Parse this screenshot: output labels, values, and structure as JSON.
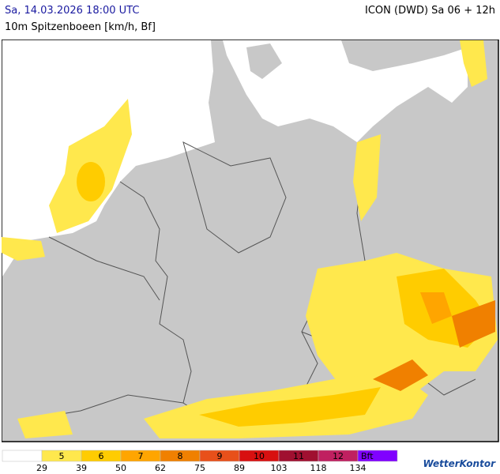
{
  "header": {
    "left": "Sa, 14.03.2026 18:00 UTC",
    "right": "ICON (DWD) Sa 06 + 12h",
    "subtitle": "10m Spitzenboeen [km/h, Bf]"
  },
  "legend": {
    "classes": [
      {
        "color": "#ffffff"
      },
      {
        "label": "5",
        "color": "#ffe84d"
      },
      {
        "label": "6",
        "color": "#ffcc00"
      },
      {
        "label": "7",
        "color": "#ffa500"
      },
      {
        "label": "8",
        "color": "#f08000"
      },
      {
        "label": "9",
        "color": "#e8501a"
      },
      {
        "label": "10",
        "color": "#d81010"
      },
      {
        "label": "11",
        "color": "#a01030"
      },
      {
        "label": "12",
        "color": "#c02060"
      },
      {
        "label": "Bft",
        "color": "#8000ff"
      }
    ],
    "kmh": [
      "29",
      "39",
      "50",
      "62",
      "75",
      "89",
      "103",
      "118",
      "134"
    ]
  },
  "logo": "WetterKontor"
}
